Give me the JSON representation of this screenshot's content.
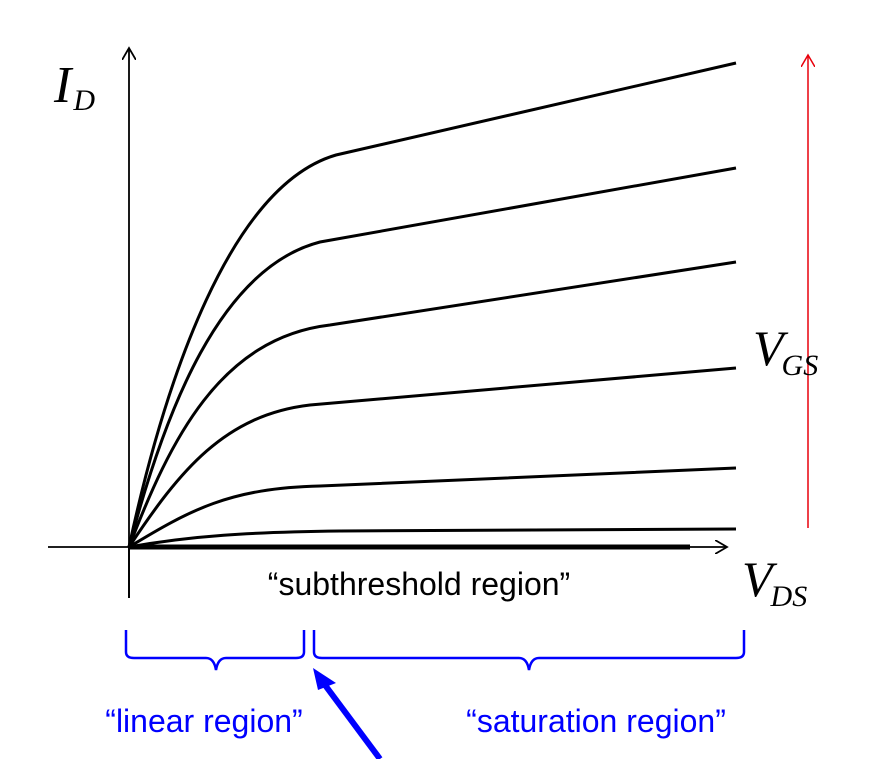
{
  "axes": {
    "y_main": "I",
    "y_sub": "D",
    "x_main": "V",
    "x_sub": "DS",
    "param_main": "V",
    "param_sub": "GS"
  },
  "labels": {
    "subthreshold": "“subthreshold region”",
    "linear": "“linear region”",
    "saturation": "“saturation region”"
  },
  "colors": {
    "curves": "#000000",
    "axes": "#000000",
    "vgs_arrow": "#e8000b",
    "regions": "#0000ff"
  },
  "curves": {
    "count": 7,
    "description_shape": "drain current increases with V_GS; each curve rises linearly then saturates"
  }
}
